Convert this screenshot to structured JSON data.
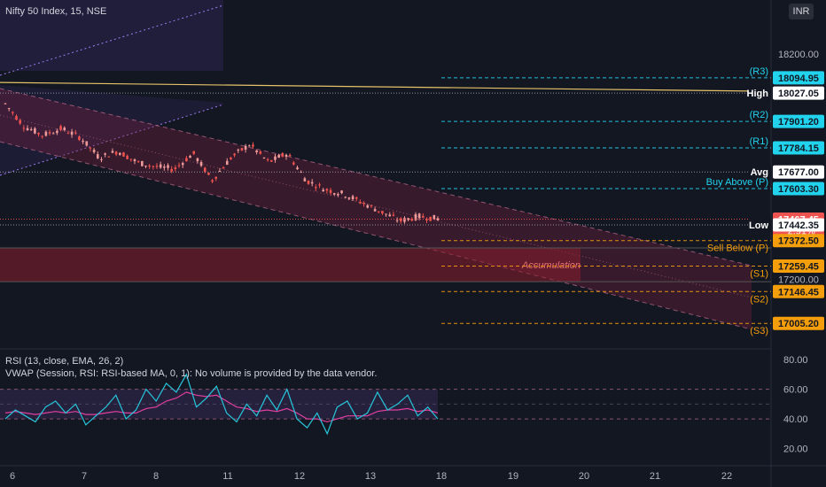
{
  "header": {
    "symbol_title": "Nifty 50 Index, 15, NSE",
    "currency_button": "INR"
  },
  "colors": {
    "background": "#131722",
    "up_candle": "#ef5350",
    "channel_fill": "#7a1f3d",
    "accumulation_zone": "#8b1e2e",
    "resistance_line": "#22d3ee",
    "support_line": "#f59e0b",
    "high_line": "#e6c36a",
    "rsi_line": "#26c6da",
    "rsi_ma_line": "#e040a0"
  },
  "chart_data": [
    {
      "type": "candlestick",
      "title": "Nifty 50 Index, 15, NSE",
      "x_ticks": [
        "6",
        "7",
        "8",
        "11",
        "12",
        "13",
        "18",
        "19",
        "20",
        "21",
        "22"
      ],
      "y_ticks": [
        18200,
        17200
      ],
      "y_tick_labels": [
        "18200.00",
        "17200.00"
      ],
      "ylim": [
        16900,
        18440
      ],
      "price_path": [
        [
          0,
          17980
        ],
        [
          1,
          17880
        ],
        [
          2,
          17840
        ],
        [
          3,
          17870
        ],
        [
          4,
          17830
        ],
        [
          5,
          17740
        ],
        [
          6,
          17770
        ],
        [
          7,
          17720
        ],
        [
          8,
          17700
        ],
        [
          9,
          17690
        ],
        [
          10,
          17760
        ],
        [
          11,
          17640
        ],
        [
          12,
          17740
        ],
        [
          13,
          17800
        ],
        [
          14,
          17720
        ],
        [
          15,
          17760
        ],
        [
          16,
          17640
        ],
        [
          17,
          17600
        ],
        [
          18,
          17580
        ],
        [
          19,
          17540
        ],
        [
          20,
          17500
        ],
        [
          21,
          17460
        ],
        [
          22,
          17480
        ],
        [
          23,
          17470
        ]
      ],
      "levels": [
        {
          "name": "R3",
          "value": 18094.95,
          "label": "(R3)",
          "price_label": "18094.95",
          "kind": "resistance"
        },
        {
          "name": "High",
          "value": 18027.05,
          "label": "High",
          "price_label": "18027.05",
          "kind": "high"
        },
        {
          "name": "R2",
          "value": 17901.2,
          "label": "(R2)",
          "price_label": "17901.20",
          "kind": "resistance"
        },
        {
          "name": "R1",
          "value": 17784.15,
          "label": "(R1)",
          "price_label": "17784.15",
          "kind": "resistance"
        },
        {
          "name": "Avg",
          "value": 17677.0,
          "label": "Avg",
          "price_label": "17677.00",
          "kind": "avg"
        },
        {
          "name": "P",
          "value": 17603.3,
          "label": "Buy Above (P)",
          "price_label": "17603.30",
          "kind": "resistance"
        },
        {
          "name": "Last",
          "value": 17467.45,
          "label": "",
          "price_label": "17467.45",
          "change_label": "−2.91%",
          "kind": "last"
        },
        {
          "name": "Low",
          "value": 17442.35,
          "label": "Low",
          "price_label": "17442.35",
          "kind": "low"
        },
        {
          "name": "Sell",
          "value": 17372.5,
          "label": "Sell Below (P)",
          "price_label": "17372.50",
          "kind": "support"
        },
        {
          "name": "S1",
          "value": 17259.45,
          "label": "(S1)",
          "price_label": "17259.45",
          "kind": "support"
        },
        {
          "name": "S2",
          "value": 17146.45,
          "label": "(S2)",
          "price_label": "17146.45",
          "kind": "support"
        },
        {
          "name": "S3",
          "value": 17005.2,
          "label": "(S3)",
          "price_label": "17005.20",
          "kind": "support"
        }
      ],
      "annotations": [
        {
          "text": "Accumulation",
          "price_top": 17340,
          "price_bottom": 17190
        }
      ]
    },
    {
      "type": "line",
      "title": "RSI (13, close, EMA, 26, 2)",
      "subtitle": "VWAP (Session, RSI: RSI-based MA, 0, 1): No volume is provided by the data vendor.",
      "ylim": [
        12,
        86
      ],
      "y_ticks": [
        80,
        60,
        40,
        20
      ],
      "y_tick_labels": [
        "80.00",
        "60.00",
        "40.00",
        "20.00"
      ],
      "bands": [
        60,
        50,
        40
      ],
      "series": [
        {
          "values": [
            40,
            46,
            42,
            38,
            48,
            52,
            44,
            50,
            36,
            42,
            48,
            56,
            40,
            46,
            60,
            52,
            64,
            58,
            70,
            48,
            54,
            62,
            44,
            38,
            50,
            42,
            56,
            46,
            60,
            40,
            34,
            44,
            30,
            48,
            52,
            40,
            44,
            58,
            46,
            50,
            56,
            42,
            48,
            40
          ]
        },
        {
          "values": [
            44,
            45,
            44,
            43,
            44,
            45,
            44,
            45,
            43,
            43,
            44,
            45,
            44,
            44,
            47,
            48,
            52,
            54,
            58,
            56,
            55,
            56,
            52,
            48,
            47,
            45,
            46,
            45,
            47,
            44,
            40,
            40,
            38,
            40,
            42,
            42,
            42,
            45,
            46,
            46,
            47,
            45,
            46,
            44
          ]
        }
      ]
    }
  ]
}
